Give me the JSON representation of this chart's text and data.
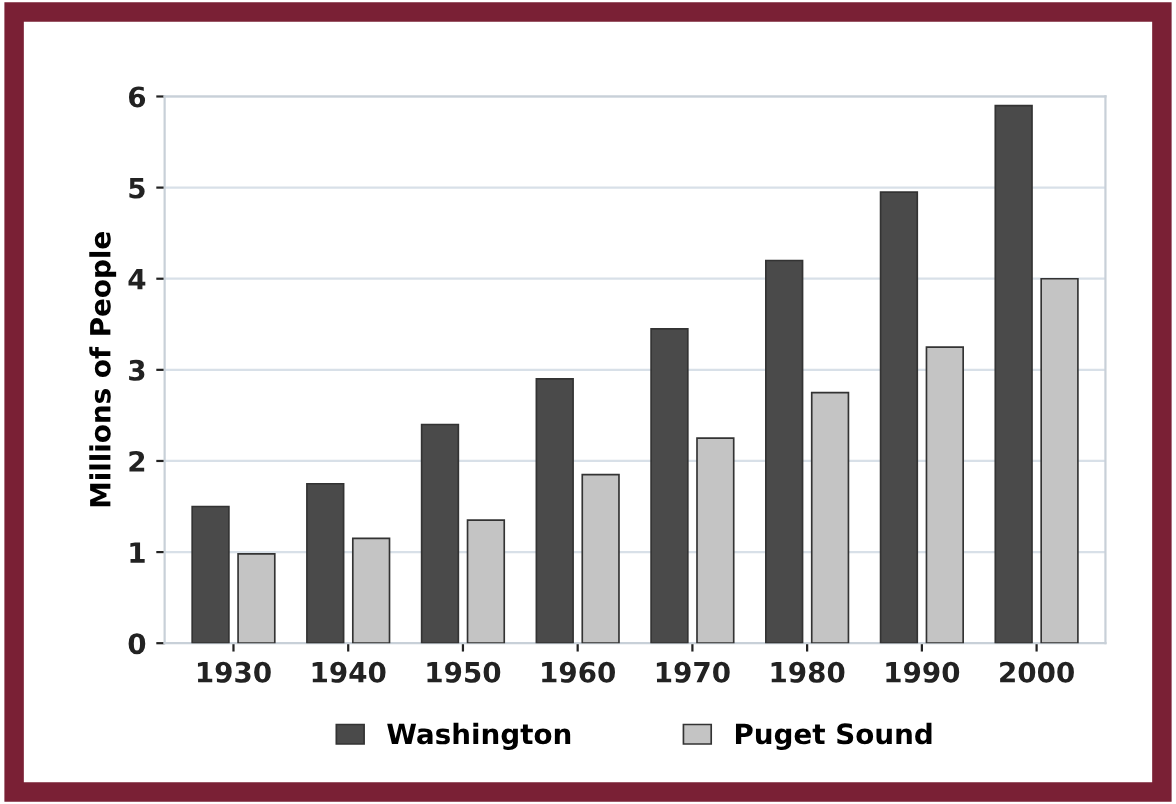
{
  "chart_data": {
    "type": "bar",
    "ylabel": "Millions of People",
    "categories": [
      "1930",
      "1940",
      "1950",
      "1960",
      "1970",
      "1980",
      "1990",
      "2000"
    ],
    "series": [
      {
        "name": "Washington",
        "color": "#4a4a4a",
        "values": [
          1.5,
          1.75,
          2.4,
          2.9,
          3.45,
          4.2,
          4.95,
          5.9
        ]
      },
      {
        "name": "Puget Sound",
        "color": "#c4c4c4",
        "values": [
          0.98,
          1.15,
          1.35,
          1.85,
          2.25,
          2.75,
          3.25,
          4.0
        ]
      }
    ],
    "ylim": [
      0,
      6
    ],
    "yticks": [
      0,
      1,
      2,
      3,
      4,
      5,
      6
    ],
    "grid": "y",
    "legend": "bottom"
  }
}
